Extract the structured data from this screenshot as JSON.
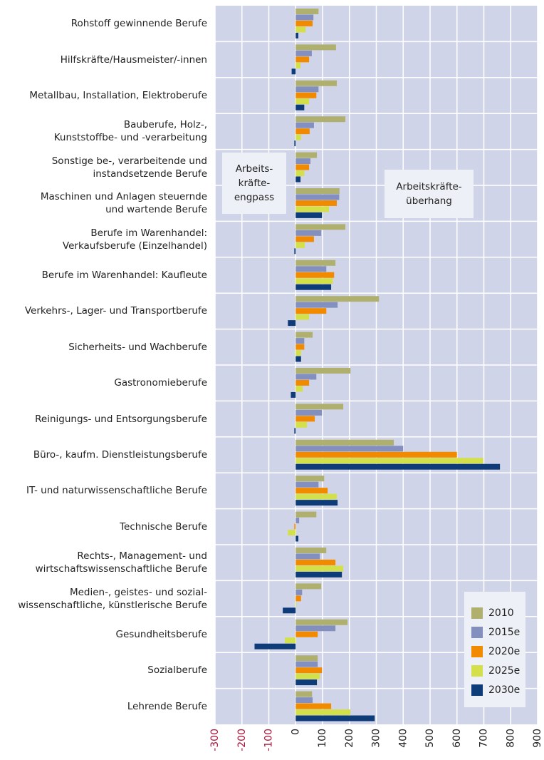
{
  "chart_data": {
    "type": "hbar",
    "categories": [
      "Rohstoff gewinnende Berufe",
      "Hilfskräfte/Hausmeister/-innen",
      "Metallbau, Installation, Elektroberufe",
      "Bauberufe, Holz-,\nKunststoffbe- und -verarbeitung",
      "Sonstige be-, verarbeitende und\ninstandsetzende Berufe",
      "Maschinen und Anlagen steuernde\nund wartende Berufe",
      "Berufe im Warenhandel:\nVerkaufsberufe (Einzelhandel)",
      "Berufe im Warenhandel: Kaufleute",
      "Verkehrs-, Lager- und Transportberufe",
      "Sicherheits- und Wachberufe",
      "Gastronomieberufe",
      "Reinigungs- und Entsorgungsberufe",
      "Büro-, kaufm. Dienstleistungsberufe",
      "IT- und naturwissenschaftliche Berufe",
      "Technische Berufe",
      "Rechts-, Management- und\nwirtschaftswissenschaftliche Berufe",
      "Medien-, geistes- und sozial-\nwissenschaftliche, künstlerische Berufe",
      "Gesundheitsberufe",
      "Sozialberufe",
      "Lehrende Berufe"
    ],
    "series": [
      {
        "name": "2010",
        "color": "#b0b06e",
        "values": [
          85,
          150,
          153,
          185,
          79,
          163,
          185,
          148,
          310,
          63,
          204,
          177,
          365,
          106,
          77,
          114,
          95,
          193,
          82,
          61
        ]
      },
      {
        "name": "2015e",
        "color": "#8390bf",
        "values": [
          66,
          60,
          85,
          68,
          55,
          162,
          95,
          114,
          156,
          32,
          77,
          98,
          400,
          85,
          13,
          90,
          24,
          148,
          82,
          63
        ]
      },
      {
        "name": "2020e",
        "color": "#f28a00",
        "values": [
          63,
          50,
          77,
          52,
          50,
          153,
          68,
          143,
          114,
          32,
          50,
          71,
          600,
          119,
          -5,
          148,
          20,
          82,
          98,
          132
        ]
      },
      {
        "name": "2025e",
        "color": "#d4e04a",
        "values": [
          37,
          18,
          50,
          20,
          32,
          124,
          34,
          138,
          50,
          20,
          26,
          42,
          698,
          153,
          -29,
          177,
          3,
          -40,
          90,
          204
        ]
      },
      {
        "name": "2030e",
        "color": "#0d3c78",
        "values": [
          10,
          -15,
          32,
          -5,
          18,
          98,
          -5,
          132,
          -29,
          20,
          -18,
          -5,
          760,
          156,
          10,
          172,
          -48,
          -153,
          79,
          294
        ]
      }
    ],
    "xlim": [
      -300,
      900
    ],
    "xticks": [
      -300,
      -200,
      -100,
      0,
      100,
      200,
      300,
      400,
      500,
      600,
      700,
      800,
      900
    ],
    "grid": true,
    "legend": "lower right",
    "annotations": [
      "Arbeits-\nkräfte-\nengpass",
      "Arbeitskräfte-\nüberhang"
    ]
  }
}
